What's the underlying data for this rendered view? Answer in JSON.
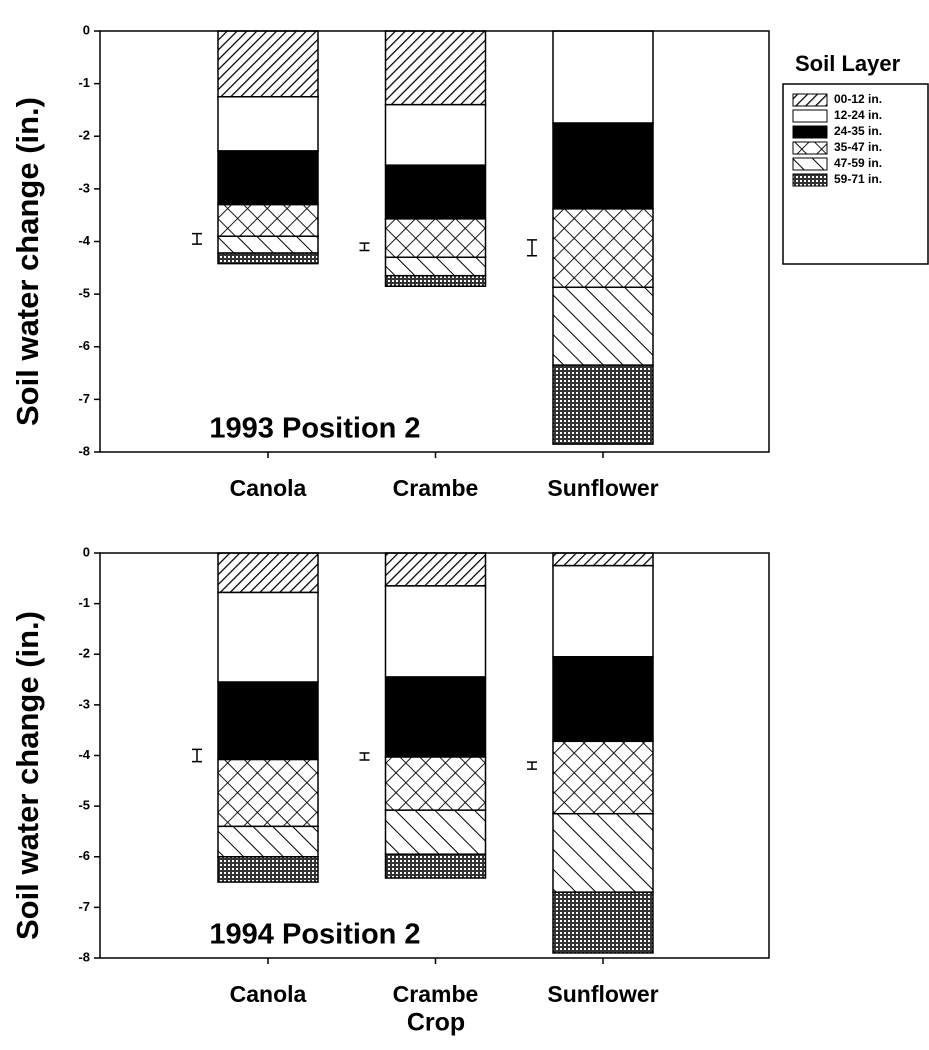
{
  "legend": {
    "title": "Soil Layer",
    "names": [
      "00-12 in.",
      "12-24 in.",
      "24-35 in.",
      "35-47 in.",
      "47-59 in.",
      "59-71 in."
    ],
    "patterns": [
      "diag",
      "white",
      "black",
      "cross",
      "back",
      "dots"
    ]
  },
  "chart_data": [
    {
      "type": "bar",
      "stacked": true,
      "title": "1993 Position 2",
      "ylabel": "Soil water change (in.)",
      "categories": [
        "Canola",
        "Crambe",
        "Sunflower"
      ],
      "series": [
        {
          "values": [
            -1.25,
            -1.4,
            0
          ]
        },
        {
          "values": [
            -1.03,
            -1.15,
            -1.75
          ]
        },
        {
          "values": [
            -1.02,
            -1.02,
            -1.63
          ]
        },
        {
          "values": [
            -0.6,
            -0.73,
            -1.49
          ]
        },
        {
          "values": [
            -0.32,
            -0.35,
            -1.48
          ]
        },
        {
          "values": [
            -0.2,
            -0.2,
            -1.5
          ]
        }
      ],
      "error_bars": {
        "values": [
          -3.95,
          -4.1,
          -4.12
        ],
        "errors": [
          0.1,
          0.07,
          0.15
        ]
      },
      "ylim": [
        -8,
        0
      ],
      "yticks": [
        0,
        -1,
        -2,
        -3,
        -4,
        -5,
        -6,
        -7,
        -8
      ]
    },
    {
      "type": "bar",
      "stacked": true,
      "title": "1994 Position 2",
      "ylabel": "Soil water change (in.)",
      "xlabel": "Crop",
      "categories": [
        "Canola",
        "Crambe",
        "Sunflower"
      ],
      "series": [
        {
          "values": [
            -0.78,
            -0.65,
            -0.25
          ]
        },
        {
          "values": [
            -1.77,
            -1.8,
            -1.8
          ]
        },
        {
          "values": [
            -1.53,
            -1.58,
            -1.67
          ]
        },
        {
          "values": [
            -1.32,
            -1.05,
            -1.43
          ]
        },
        {
          "values": [
            -0.6,
            -0.87,
            -1.55
          ]
        },
        {
          "values": [
            -0.5,
            -0.47,
            -1.2
          ]
        }
      ],
      "error_bars": {
        "values": [
          -4.0,
          -4.02,
          -4.2
        ],
        "errors": [
          0.12,
          0.07,
          0.07
        ]
      },
      "ylim": [
        -8,
        0
      ],
      "yticks": [
        0,
        -1,
        -2,
        -3,
        -4,
        -5,
        -6,
        -7,
        -8
      ]
    }
  ]
}
